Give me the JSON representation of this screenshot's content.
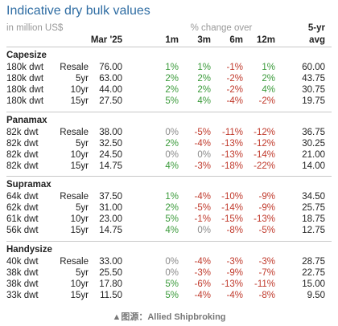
{
  "header": {
    "title": "Indicative dry bulk values",
    "subtitle": "in million US$",
    "change_label": "% change over",
    "columns": [
      "Mar '25",
      "1m",
      "3m",
      "6m",
      "12m"
    ],
    "avg_label": [
      "5-yr",
      "avg"
    ]
  },
  "groups": [
    {
      "name": "Capesize",
      "rows": [
        [
          "180k dwt",
          "Resale",
          "76.00",
          "1%",
          "1%",
          "-1%",
          "1%",
          "60.00"
        ],
        [
          "180k dwt",
          "5yr",
          "63.00",
          "2%",
          "2%",
          "-2%",
          "2%",
          "43.75"
        ],
        [
          "180k dwt",
          "10yr",
          "44.00",
          "2%",
          "2%",
          "-2%",
          "4%",
          "30.75"
        ],
        [
          "180k dwt",
          "15yr",
          "27.50",
          "5%",
          "4%",
          "-4%",
          "-2%",
          "19.75"
        ]
      ]
    },
    {
      "name": "Panamax",
      "rows": [
        [
          "82k dwt",
          "Resale",
          "38.00",
          "0%",
          "-5%",
          "-11%",
          "-12%",
          "36.75"
        ],
        [
          "82k dwt",
          "5yr",
          "32.50",
          "2%",
          "-4%",
          "-13%",
          "-12%",
          "30.25"
        ],
        [
          "82k dwt",
          "10yr",
          "24.50",
          "0%",
          "0%",
          "-13%",
          "-14%",
          "21.00"
        ],
        [
          "82k dwt",
          "15yr",
          "14.75",
          "4%",
          "-3%",
          "-18%",
          "-22%",
          "14.00"
        ]
      ]
    },
    {
      "name": "Supramax",
      "rows": [
        [
          "64k dwt",
          "Resale",
          "37.50",
          "1%",
          "-4%",
          "-10%",
          "-9%",
          "34.50"
        ],
        [
          "62k dwt",
          "5yr",
          "31.00",
          "2%",
          "-5%",
          "-14%",
          "-9%",
          "25.75"
        ],
        [
          "61k dwt",
          "10yr",
          "23.00",
          "5%",
          "-1%",
          "-15%",
          "-13%",
          "18.75"
        ],
        [
          "56k dwt",
          "15yr",
          "14.75",
          "4%",
          "0%",
          "-8%",
          "-5%",
          "12.75"
        ]
      ]
    },
    {
      "name": "Handysize",
      "rows": [
        [
          "40k dwt",
          "Resale",
          "33.00",
          "0%",
          "-4%",
          "-3%",
          "-3%",
          "28.75"
        ],
        [
          "38k dwt",
          "5yr",
          "25.50",
          "0%",
          "-3%",
          "-9%",
          "-7%",
          "22.75"
        ],
        [
          "38k dwt",
          "10yr",
          "17.80",
          "5%",
          "-6%",
          "-13%",
          "-11%",
          "15.00"
        ],
        [
          "33k dwt",
          "15yr",
          "11.50",
          "5%",
          "-4%",
          "-4%",
          "-8%",
          "9.50"
        ]
      ]
    }
  ],
  "source": "▲图源：Allied Shipbroking"
}
